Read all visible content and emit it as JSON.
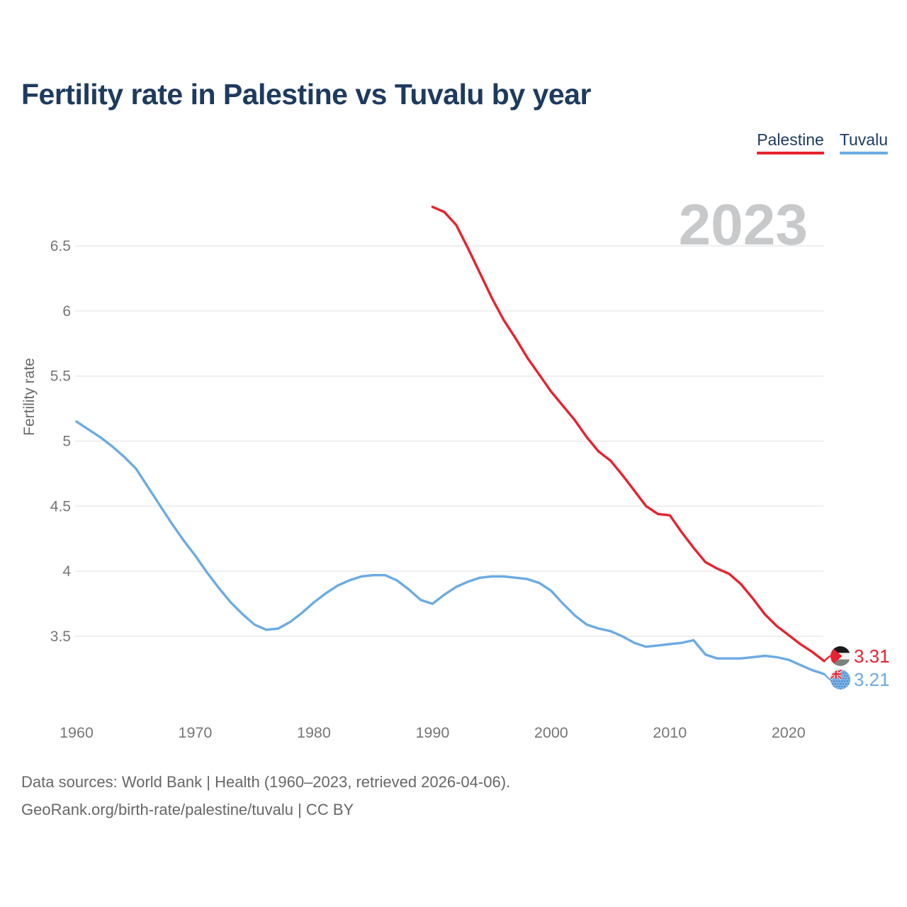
{
  "header": {
    "title": "Fertility rate in Palestine vs Tuvalu by year"
  },
  "legend": [
    {
      "label": "Palestine",
      "color": "#e8212d"
    },
    {
      "label": "Tuvalu",
      "color": "#6cabe4"
    }
  ],
  "watermark": "2023",
  "footer": {
    "line1": "Data sources: World Bank | Health (1960–2023, retrieved 2026-04-06).",
    "line2": "GeoRank.org/birth-rate/palestine/tuvalu | CC BY"
  },
  "chart_data": {
    "type": "line",
    "title": "Fertility rate in Palestine vs Tuvalu by year",
    "xlabel": "",
    "ylabel": "Fertility rate",
    "grid": "horizontal gridlines only, light gray",
    "legend_position": "top-right",
    "xlim": [
      1960,
      2023
    ],
    "ylim": [
      3.1,
      6.85
    ],
    "x_ticks": [
      1960,
      1970,
      1980,
      1990,
      2000,
      2010,
      2020
    ],
    "y_ticks": [
      6.5,
      6,
      5.5,
      5,
      4.5,
      4,
      3.5
    ],
    "series": [
      {
        "name": "Palestine",
        "color": "#e8212d",
        "end_label": "3.31",
        "x": [
          1990,
          1991,
          1992,
          1993,
          1994,
          1995,
          1996,
          1997,
          1998,
          1999,
          2000,
          2001,
          2002,
          2003,
          2004,
          2005,
          2006,
          2007,
          2008,
          2009,
          2010,
          2011,
          2012,
          2013,
          2014,
          2015,
          2016,
          2017,
          2018,
          2019,
          2020,
          2021,
          2022,
          2023
        ],
        "values": [
          6.8,
          6.76,
          6.66,
          6.48,
          6.29,
          6.1,
          5.93,
          5.79,
          5.64,
          5.51,
          5.38,
          5.27,
          5.16,
          5.03,
          4.92,
          4.85,
          4.74,
          4.62,
          4.5,
          4.44,
          4.43,
          4.3,
          4.18,
          4.07,
          4.02,
          3.98,
          3.9,
          3.79,
          3.67,
          3.58,
          3.51,
          3.44,
          3.38,
          3.31
        ]
      },
      {
        "name": "Tuvalu",
        "color": "#6cabe4",
        "end_label": "3.21",
        "x": [
          1960,
          1961,
          1962,
          1963,
          1964,
          1965,
          1966,
          1967,
          1968,
          1969,
          1970,
          1971,
          1972,
          1973,
          1974,
          1975,
          1976,
          1977,
          1978,
          1979,
          1980,
          1981,
          1982,
          1983,
          1984,
          1985,
          1986,
          1987,
          1988,
          1989,
          1990,
          1991,
          1992,
          1993,
          1994,
          1995,
          1996,
          1997,
          1998,
          1999,
          2000,
          2001,
          2002,
          2003,
          2004,
          2005,
          2006,
          2007,
          2008,
          2009,
          2010,
          2011,
          2012,
          2013,
          2014,
          2015,
          2016,
          2017,
          2018,
          2019,
          2020,
          2021,
          2022,
          2023
        ],
        "values": [
          5.15,
          5.09,
          5.03,
          4.96,
          4.88,
          4.79,
          4.65,
          4.51,
          4.37,
          4.24,
          4.12,
          3.99,
          3.87,
          3.76,
          3.67,
          3.59,
          3.55,
          3.56,
          3.61,
          3.68,
          3.76,
          3.83,
          3.89,
          3.93,
          3.96,
          3.97,
          3.97,
          3.93,
          3.86,
          3.78,
          3.75,
          3.82,
          3.88,
          3.92,
          3.95,
          3.96,
          3.96,
          3.95,
          3.94,
          3.91,
          3.85,
          3.75,
          3.66,
          3.59,
          3.56,
          3.54,
          3.5,
          3.45,
          3.42,
          3.43,
          3.44,
          3.45,
          3.47,
          3.36,
          3.33,
          3.33,
          3.33,
          3.34,
          3.35,
          3.34,
          3.32,
          3.28,
          3.24,
          3.21
        ]
      }
    ]
  }
}
